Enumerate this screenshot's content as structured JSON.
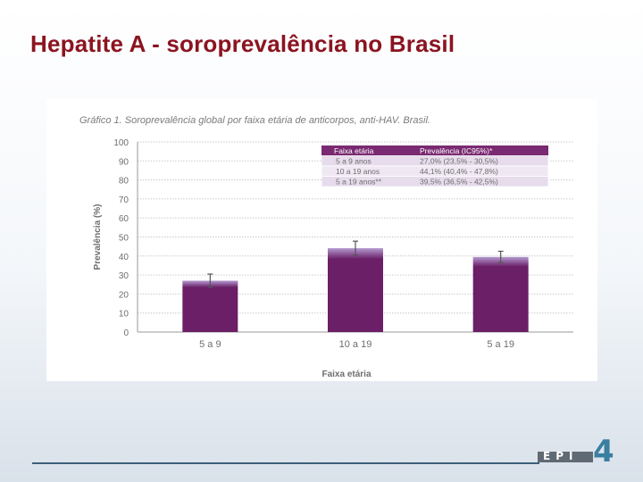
{
  "slide": {
    "title": "Hepatite A  - soroprevalência no Brasil"
  },
  "logo": {
    "text": "EPI",
    "number": "4"
  },
  "colors": {
    "title": "#8b1420",
    "bar": "#6a1f66",
    "bar_top": "#b49ad0",
    "table_header": "#7a2a72",
    "footer_line": "#3d5f78",
    "logo_number": "#3a7fa0"
  },
  "chart_data": {
    "type": "bar",
    "title": "Gráfico 1. Soroprevalência global por faixa etária de anticorpos, anti-HAV. Brasil.",
    "xlabel": "Faixa etária",
    "ylabel": "Prevalência (%)",
    "categories": [
      "5 a 9",
      "10 a 19",
      "5 a 19"
    ],
    "values": [
      27.0,
      44.1,
      39.5
    ],
    "error_low": [
      23.5,
      40.4,
      36.5
    ],
    "error_high": [
      30.5,
      47.8,
      42.5
    ],
    "ylim": [
      0,
      100
    ],
    "yticks": [
      "100",
      "90",
      "80",
      "70",
      "60",
      "50",
      "40",
      "30",
      "20",
      "10",
      "0"
    ],
    "grid": true,
    "table": {
      "headers": [
        "Faixa etária",
        "Prevalência (IC95%)*"
      ],
      "rows": [
        [
          "5 a 9 anos",
          "27,0% (23,5% - 30,5%)"
        ],
        [
          "10 a 19 anos",
          "44,1% (40,4% - 47,8%)"
        ],
        [
          "5 a 19 anos**",
          "39,5% (36,5% - 42,5%)"
        ]
      ]
    }
  }
}
